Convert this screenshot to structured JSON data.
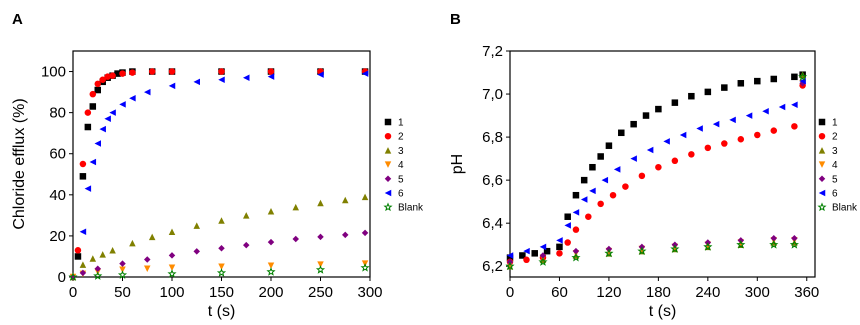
{
  "chart_data": [
    {
      "panel_label": "A",
      "type": "scatter",
      "xlabel": "t (s)",
      "ylabel": "Chloride efflux (%)",
      "xlim": [
        0,
        300
      ],
      "ylim": [
        0,
        110
      ],
      "xticks": [
        0,
        50,
        100,
        150,
        200,
        250,
        300
      ],
      "yticks": [
        0,
        20,
        40,
        60,
        80,
        100
      ],
      "xtick_labels": [
        "0",
        "50",
        "100",
        "150",
        "200",
        "250",
        "300"
      ],
      "ytick_labels": [
        "0",
        "20",
        "40",
        "60",
        "80",
        "100"
      ],
      "grid": false,
      "legend_position": "right",
      "series": [
        {
          "name": "1",
          "color": "#000000",
          "marker": "square",
          "points": [
            [
              5,
              10
            ],
            [
              10,
              49
            ],
            [
              15,
              73
            ],
            [
              20,
              83
            ],
            [
              25,
              91
            ],
            [
              30,
              95
            ],
            [
              35,
              97
            ],
            [
              40,
              98
            ],
            [
              45,
              99
            ],
            [
              50,
              99.5
            ],
            [
              60,
              100
            ],
            [
              80,
              100
            ],
            [
              100,
              100
            ],
            [
              150,
              100
            ],
            [
              200,
              100
            ],
            [
              250,
              100
            ],
            [
              295,
              100
            ]
          ]
        },
        {
          "name": "2",
          "color": "#ff0000",
          "marker": "circle",
          "points": [
            [
              5,
              13
            ],
            [
              10,
              55
            ],
            [
              15,
              80
            ],
            [
              20,
              89
            ],
            [
              25,
              94
            ],
            [
              30,
              96
            ],
            [
              35,
              97.5
            ],
            [
              40,
              98
            ],
            [
              50,
              99
            ],
            [
              60,
              99.5
            ],
            [
              80,
              100
            ],
            [
              100,
              100
            ],
            [
              150,
              100
            ],
            [
              200,
              100
            ],
            [
              250,
              100
            ],
            [
              295,
              100
            ]
          ]
        },
        {
          "name": "3",
          "color": "#808000",
          "marker": "triangle-up",
          "points": [
            [
              0,
              0
            ],
            [
              10,
              6
            ],
            [
              20,
              9
            ],
            [
              30,
              11
            ],
            [
              40,
              13
            ],
            [
              60,
              16.5
            ],
            [
              80,
              19.5
            ],
            [
              100,
              22
            ],
            [
              125,
              25
            ],
            [
              150,
              27.5
            ],
            [
              175,
              30
            ],
            [
              200,
              32
            ],
            [
              225,
              34
            ],
            [
              250,
              36
            ],
            [
              275,
              37.5
            ],
            [
              295,
              39
            ]
          ]
        },
        {
          "name": "4",
          "color": "#ff8c00",
          "marker": "triangle-down",
          "points": [
            [
              0,
              0
            ],
            [
              10,
              1.5
            ],
            [
              25,
              2.5
            ],
            [
              50,
              3.5
            ],
            [
              75,
              4
            ],
            [
              100,
              4.5
            ],
            [
              150,
              5
            ],
            [
              200,
              5.5
            ],
            [
              250,
              6
            ],
            [
              295,
              6.5
            ]
          ]
        },
        {
          "name": "5",
          "color": "#800080",
          "marker": "diamond",
          "points": [
            [
              0,
              0
            ],
            [
              10,
              2
            ],
            [
              25,
              4
            ],
            [
              50,
              6.5
            ],
            [
              75,
              8.5
            ],
            [
              100,
              10.5
            ],
            [
              125,
              12.5
            ],
            [
              150,
              14
            ],
            [
              175,
              15.5
            ],
            [
              200,
              17
            ],
            [
              225,
              18.5
            ],
            [
              250,
              19.5
            ],
            [
              275,
              20.5
            ],
            [
              295,
              21.5
            ]
          ]
        },
        {
          "name": "6",
          "color": "#0000ff",
          "marker": "triangle-left",
          "points": [
            [
              10,
              22
            ],
            [
              15,
              43
            ],
            [
              20,
              56
            ],
            [
              25,
              65
            ],
            [
              30,
              72
            ],
            [
              35,
              77
            ],
            [
              40,
              80
            ],
            [
              50,
              84
            ],
            [
              60,
              87
            ],
            [
              75,
              90
            ],
            [
              100,
              93
            ],
            [
              125,
              95
            ],
            [
              150,
              96
            ],
            [
              175,
              97
            ],
            [
              200,
              97.5
            ],
            [
              250,
              98.5
            ],
            [
              295,
              99
            ]
          ]
        },
        {
          "name": "Blank",
          "color": "#008000",
          "marker": "star-open",
          "points": [
            [
              0,
              0
            ],
            [
              25,
              0.5
            ],
            [
              50,
              1
            ],
            [
              100,
              1.5
            ],
            [
              150,
              2
            ],
            [
              200,
              2.5
            ],
            [
              250,
              3.5
            ],
            [
              295,
              4.5
            ]
          ]
        }
      ]
    },
    {
      "panel_label": "B",
      "type": "scatter",
      "xlabel": "t (s)",
      "ylabel": "pH",
      "xlim": [
        0,
        370
      ],
      "ylim": [
        6.15,
        7.2
      ],
      "xticks": [
        0,
        60,
        120,
        180,
        240,
        300,
        360
      ],
      "yticks": [
        6.2,
        6.4,
        6.6,
        6.8,
        7.0,
        7.2
      ],
      "xtick_labels": [
        "0",
        "60",
        "120",
        "180",
        "240",
        "300",
        "360"
      ],
      "ytick_labels": [
        "6,2",
        "6,4",
        "6,6",
        "6,8",
        "7,0",
        "7,2"
      ],
      "grid": false,
      "legend_position": "right",
      "series": [
        {
          "name": "1",
          "color": "#000000",
          "marker": "square",
          "points": [
            [
              0,
              6.24
            ],
            [
              15,
              6.25
            ],
            [
              30,
              6.26
            ],
            [
              45,
              6.27
            ],
            [
              60,
              6.29
            ],
            [
              70,
              6.43
            ],
            [
              80,
              6.53
            ],
            [
              90,
              6.6
            ],
            [
              100,
              6.66
            ],
            [
              110,
              6.71
            ],
            [
              120,
              6.76
            ],
            [
              135,
              6.82
            ],
            [
              150,
              6.86
            ],
            [
              165,
              6.9
            ],
            [
              180,
              6.93
            ],
            [
              200,
              6.96
            ],
            [
              220,
              6.99
            ],
            [
              240,
              7.01
            ],
            [
              260,
              7.03
            ],
            [
              280,
              7.05
            ],
            [
              300,
              7.06
            ],
            [
              320,
              7.07
            ],
            [
              345,
              7.08
            ],
            [
              355,
              7.09
            ]
          ]
        },
        {
          "name": "2",
          "color": "#ff0000",
          "marker": "circle",
          "points": [
            [
              0,
              6.22
            ],
            [
              20,
              6.23
            ],
            [
              40,
              6.24
            ],
            [
              60,
              6.26
            ],
            [
              70,
              6.31
            ],
            [
              80,
              6.37
            ],
            [
              95,
              6.43
            ],
            [
              110,
              6.49
            ],
            [
              125,
              6.53
            ],
            [
              140,
              6.57
            ],
            [
              160,
              6.62
            ],
            [
              180,
              6.66
            ],
            [
              200,
              6.69
            ],
            [
              220,
              6.72
            ],
            [
              240,
              6.75
            ],
            [
              260,
              6.77
            ],
            [
              280,
              6.79
            ],
            [
              300,
              6.81
            ],
            [
              320,
              6.83
            ],
            [
              345,
              6.85
            ],
            [
              355,
              7.04
            ]
          ]
        },
        {
          "name": "3",
          "color": "#808000",
          "marker": "triangle-up",
          "points": [
            [
              0,
              6.2
            ],
            [
              40,
              6.23
            ],
            [
              80,
              6.25
            ],
            [
              120,
              6.26
            ],
            [
              160,
              6.27
            ],
            [
              200,
              6.28
            ],
            [
              240,
              6.29
            ],
            [
              280,
              6.3
            ],
            [
              320,
              6.31
            ],
            [
              345,
              6.31
            ],
            [
              355,
              7.09
            ]
          ]
        },
        {
          "name": "4",
          "color": "#ff8c00",
          "marker": "triangle-down",
          "points": [
            [
              0,
              6.21
            ],
            [
              40,
              6.24
            ],
            [
              80,
              6.26
            ],
            [
              120,
              6.27
            ],
            [
              160,
              6.28
            ],
            [
              200,
              6.29
            ],
            [
              240,
              6.3
            ],
            [
              280,
              6.31
            ],
            [
              320,
              6.32
            ],
            [
              345,
              6.32
            ],
            [
              355,
              7.05
            ]
          ]
        },
        {
          "name": "5",
          "color": "#800080",
          "marker": "diamond",
          "points": [
            [
              0,
              6.22
            ],
            [
              40,
              6.25
            ],
            [
              80,
              6.27
            ],
            [
              120,
              6.28
            ],
            [
              160,
              6.29
            ],
            [
              200,
              6.3
            ],
            [
              240,
              6.31
            ],
            [
              280,
              6.32
            ],
            [
              320,
              6.33
            ],
            [
              345,
              6.33
            ],
            [
              355,
              7.05
            ]
          ]
        },
        {
          "name": "6",
          "color": "#0000ff",
          "marker": "triangle-left",
          "points": [
            [
              0,
              6.25
            ],
            [
              20,
              6.27
            ],
            [
              40,
              6.29
            ],
            [
              60,
              6.32
            ],
            [
              70,
              6.39
            ],
            [
              80,
              6.45
            ],
            [
              90,
              6.51
            ],
            [
              100,
              6.55
            ],
            [
              115,
              6.6
            ],
            [
              130,
              6.65
            ],
            [
              150,
              6.7
            ],
            [
              170,
              6.74
            ],
            [
              190,
              6.78
            ],
            [
              210,
              6.81
            ],
            [
              230,
              6.84
            ],
            [
              250,
              6.86
            ],
            [
              270,
              6.88
            ],
            [
              290,
              6.9
            ],
            [
              310,
              6.92
            ],
            [
              330,
              6.94
            ],
            [
              345,
              6.95
            ],
            [
              355,
              7.06
            ]
          ]
        },
        {
          "name": "Blank",
          "color": "#008000",
          "marker": "star-open",
          "points": [
            [
              0,
              6.2
            ],
            [
              40,
              6.22
            ],
            [
              80,
              6.24
            ],
            [
              120,
              6.26
            ],
            [
              160,
              6.27
            ],
            [
              200,
              6.28
            ],
            [
              240,
              6.29
            ],
            [
              280,
              6.3
            ],
            [
              320,
              6.3
            ],
            [
              345,
              6.3
            ],
            [
              355,
              7.08
            ]
          ]
        }
      ]
    }
  ]
}
